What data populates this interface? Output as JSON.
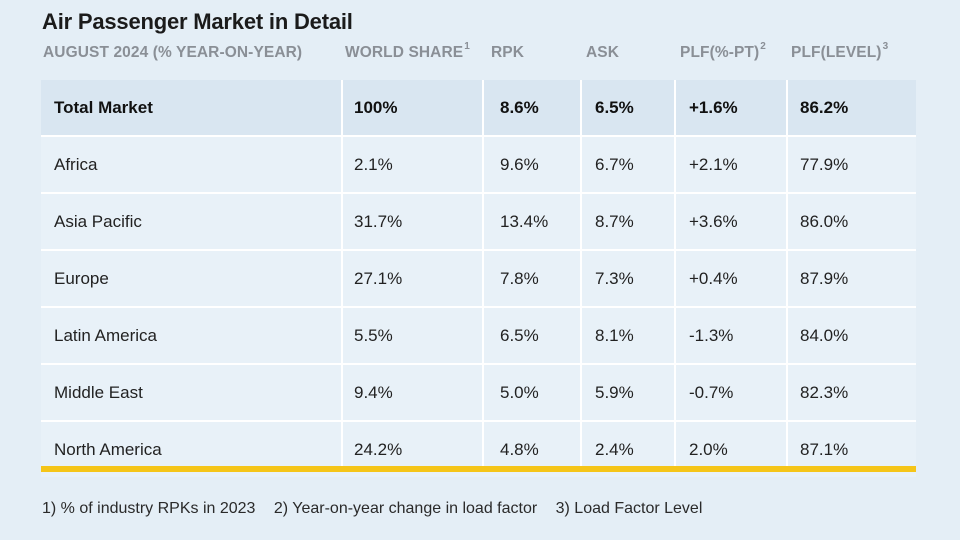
{
  "title": "Air Passenger Market in Detail",
  "headers": {
    "region": "AUGUST 2024 (% YEAR-ON-YEAR)",
    "world_share": "WORLD SHARE",
    "world_share_note": "1",
    "rpk": "RPK",
    "ask": "ASK",
    "plf_change": "PLF(%-PT)",
    "plf_change_note": "2",
    "plf_level": "PLF(LEVEL)",
    "plf_level_note": "3"
  },
  "rows": [
    {
      "region": "Total Market",
      "world_share": "100%",
      "rpk": "8.6%",
      "ask": "6.5%",
      "plf_change": "+1.6%",
      "plf_level": "86.2%"
    },
    {
      "region": "Africa",
      "world_share": "2.1%",
      "rpk": "9.6%",
      "ask": "6.7%",
      "plf_change": "+2.1%",
      "plf_level": "77.9%"
    },
    {
      "region": "Asia Pacific",
      "world_share": "31.7%",
      "rpk": "13.4%",
      "ask": "8.7%",
      "plf_change": "+3.6%",
      "plf_level": "86.0%"
    },
    {
      "region": "Europe",
      "world_share": "27.1%",
      "rpk": "7.8%",
      "ask": "7.3%",
      "plf_change": "+0.4%",
      "plf_level": "87.9%"
    },
    {
      "region": "Latin America",
      "world_share": "5.5%",
      "rpk": "6.5%",
      "ask": "8.1%",
      "plf_change": "-1.3%",
      "plf_level": "84.0%"
    },
    {
      "region": "Middle East",
      "world_share": "9.4%",
      "rpk": "5.0%",
      "ask": "5.9%",
      "plf_change": "-0.7%",
      "plf_level": "82.3%"
    },
    {
      "region": "North America",
      "world_share": "24.2%",
      "rpk": "4.8%",
      "ask": "2.4%",
      "plf_change": "2.0%",
      "plf_level": "87.1%"
    }
  ],
  "footnotes": {
    "note1": "1) % of industry RPKs in 2023",
    "note2": "2) Year-on-year change in load factor",
    "note3": "3) Load Factor Level"
  },
  "colors": {
    "background": "#e4eef6",
    "total_row": "#d9e6f1",
    "accent_bar": "#f5c518",
    "header_text": "#8a8f96"
  }
}
